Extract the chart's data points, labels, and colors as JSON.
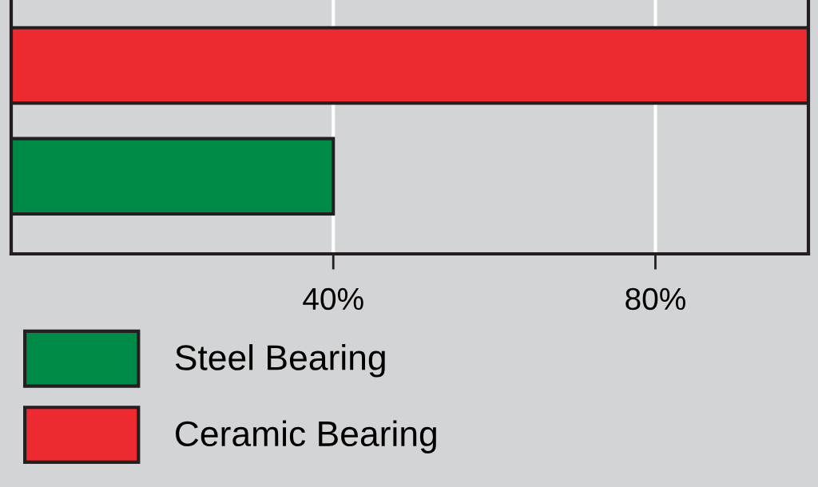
{
  "chart_data": {
    "type": "bar",
    "orientation": "horizontal",
    "categories": [
      null,
      null
    ],
    "series": [
      {
        "name": "Ceramic Bearing",
        "color": "#ed2a2f",
        "values": [
          99,
          null
        ]
      },
      {
        "name": "Steel Bearing",
        "color": "#008a47",
        "values": [
          null,
          40
        ]
      }
    ],
    "xlim": [
      0,
      99
    ],
    "xticks": [
      {
        "value": 40,
        "label": "40%"
      },
      {
        "value": 80,
        "label": "80%"
      }
    ],
    "grid": "x",
    "legend": "bottom left",
    "tick_labels": "x"
  }
}
